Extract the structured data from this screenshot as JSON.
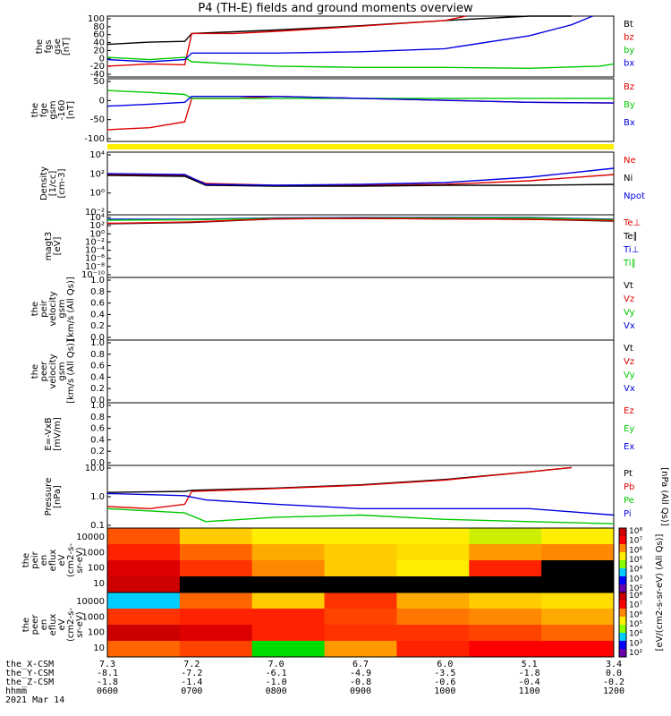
{
  "title": "P4 (TH-E) fields and ground moments overview",
  "colors": {
    "black": "#000000",
    "red": "#e00000",
    "green": "#00c800",
    "blue": "#0000e0",
    "yellow": "#ffee00"
  },
  "chart_data": [
    {
      "type": "line",
      "id": "fgs",
      "ylabel": [
        "the",
        "fgs",
        "gse",
        "[nT]"
      ],
      "yticks": [
        "100",
        "80",
        "60",
        "40",
        "20",
        "0",
        "-20",
        "-40"
      ],
      "ylim": [
        -40,
        100
      ],
      "legend": [
        {
          "name": "Bt",
          "color": "black"
        },
        {
          "name": "bz",
          "color": "red"
        },
        {
          "name": "by",
          "color": "green"
        },
        {
          "name": "bx",
          "color": "blue"
        }
      ],
      "series": [
        {
          "name": "Bt",
          "color": "black",
          "x": [
            "0600",
            "0630",
            "0655",
            "0700",
            "0730",
            "0800",
            "0900",
            "1000",
            "1100",
            "1130"
          ],
          "y": [
            35,
            40,
            42,
            60,
            64,
            68,
            78,
            90,
            100,
            102
          ]
        },
        {
          "name": "bz",
          "color": "red",
          "x": [
            "0600",
            "0630",
            "0655",
            "0700",
            "0730",
            "0800",
            "0900",
            "1000",
            "1015"
          ],
          "y": [
            -15,
            -10,
            -12,
            60,
            60,
            65,
            77,
            90,
            100
          ]
        },
        {
          "name": "by",
          "color": "green",
          "x": [
            "0600",
            "0630",
            "0655",
            "0700",
            "0730",
            "0800",
            "0900",
            "1000",
            "1100",
            "1150",
            "1200"
          ],
          "y": [
            5,
            0,
            5,
            -5,
            -10,
            -15,
            -18,
            -18,
            -20,
            -15,
            -10
          ]
        },
        {
          "name": "bx",
          "color": "blue",
          "x": [
            "0600",
            "0630",
            "0655",
            "0700",
            "0730",
            "0800",
            "0900",
            "1000",
            "1100",
            "1130",
            "1145"
          ],
          "y": [
            0,
            -5,
            0,
            15,
            15,
            15,
            18,
            25,
            55,
            80,
            100
          ]
        }
      ]
    },
    {
      "type": "line",
      "id": "fge",
      "ylabel": [
        "the",
        "fge",
        "gsm",
        "-160",
        "[nT]"
      ],
      "yticks": [
        "50",
        "0",
        "-50",
        "-100"
      ],
      "ylim": [
        -110,
        50
      ],
      "legend": [
        {
          "name": "Bz",
          "color": "red"
        },
        {
          "name": "By",
          "color": "green"
        },
        {
          "name": "Bx",
          "color": "blue"
        }
      ],
      "series": [
        {
          "name": "Bz",
          "color": "red",
          "x": [
            "0600",
            "0630",
            "0655",
            "0700",
            "0730",
            "0800",
            "0900",
            "1000",
            "1100",
            "1200"
          ],
          "y": [
            -80,
            -75,
            -60,
            0,
            0,
            5,
            0,
            -5,
            -10,
            -12
          ]
        },
        {
          "name": "By",
          "color": "green",
          "x": [
            "0600",
            "0630",
            "0655",
            "0700",
            "0730",
            "0800",
            "0900",
            "1000",
            "1100",
            "1200"
          ],
          "y": [
            20,
            15,
            10,
            0,
            0,
            0,
            0,
            0,
            0,
            0
          ]
        },
        {
          "name": "Bx",
          "color": "blue",
          "x": [
            "0600",
            "0630",
            "0655",
            "0700",
            "0730",
            "0800",
            "0900",
            "1000",
            "1100",
            "1200"
          ],
          "y": [
            -20,
            -15,
            -10,
            5,
            5,
            5,
            0,
            -5,
            -10,
            -12
          ]
        }
      ]
    },
    {
      "type": "line",
      "id": "density",
      "ylabel": [
        "Density",
        "[1/cc]",
        "[cm-3]"
      ],
      "yticks": [
        "10⁴",
        "10²",
        "10⁰",
        "10⁻²"
      ],
      "ylim": [
        -3,
        4
      ],
      "yscale": "log",
      "legend": [
        {
          "name": "Ne",
          "color": "red"
        },
        {
          "name": "Ni",
          "color": "black"
        },
        {
          "name": "Npot",
          "color": "blue"
        }
      ],
      "series": [
        {
          "name": "Ne",
          "color": "red",
          "x": [
            "0600",
            "0655",
            "0710",
            "0800",
            "0900",
            "1000",
            "1100",
            "1200"
          ],
          "y": [
            1.5,
            1.4,
            0.5,
            0.3,
            0.3,
            0.4,
            0.8,
            1.5
          ]
        },
        {
          "name": "Ni",
          "color": "black",
          "x": [
            "0600",
            "0655",
            "0710",
            "0800",
            "0900",
            "1000",
            "1100",
            "1200"
          ],
          "y": [
            1.4,
            1.3,
            0.3,
            0.2,
            0.2,
            0.3,
            0.3,
            0.4
          ]
        },
        {
          "name": "Npot",
          "color": "blue",
          "x": [
            "0600",
            "0655",
            "0710",
            "0800",
            "0900",
            "1000",
            "1100",
            "1200"
          ],
          "y": [
            1.6,
            1.5,
            0.4,
            0.3,
            0.4,
            0.6,
            1.2,
            2.2
          ]
        }
      ]
    },
    {
      "type": "line",
      "id": "temp",
      "ylabel": [
        "magt3",
        "[eV]"
      ],
      "yticks": [
        "10⁴",
        "10²",
        "10⁰",
        "10⁻²",
        "10⁻⁴",
        "10⁻⁶",
        "10⁻⁸",
        "10⁻¹⁰"
      ],
      "ylim": [
        -10,
        4
      ],
      "yscale": "log",
      "legend": [
        {
          "name": "Te⊥",
          "color": "red"
        },
        {
          "name": "Te∥",
          "color": "black"
        },
        {
          "name": "Ti⊥",
          "color": "blue"
        },
        {
          "name": "Ti∥",
          "color": "green"
        }
      ],
      "series": [
        {
          "name": "Ti⊥",
          "color": "blue",
          "x": [
            "0600",
            "0700",
            "0800",
            "0900",
            "1000",
            "1100",
            "1200"
          ],
          "y": [
            3.0,
            3.0,
            3.3,
            3.4,
            3.4,
            3.4,
            3.0
          ]
        },
        {
          "name": "Ti∥",
          "color": "green",
          "x": [
            "0600",
            "0700",
            "0800",
            "0900",
            "1000",
            "1100",
            "1200"
          ],
          "y": [
            2.8,
            2.9,
            3.2,
            3.3,
            3.3,
            3.3,
            2.9
          ]
        },
        {
          "name": "Te∥",
          "color": "black",
          "x": [
            "0600",
            "0700",
            "0800",
            "0900",
            "1000",
            "1100",
            "1200"
          ],
          "y": [
            2.0,
            2.3,
            3.1,
            3.2,
            3.1,
            3.0,
            2.6
          ]
        },
        {
          "name": "Te⊥",
          "color": "red",
          "x": [
            "0600",
            "0700",
            "0800",
            "0900",
            "1000",
            "1100",
            "1200"
          ],
          "y": [
            2.1,
            2.4,
            3.1,
            3.2,
            3.1,
            3.0,
            2.7
          ]
        }
      ]
    },
    {
      "type": "line",
      "id": "peir_vel",
      "ylabel": [
        "the",
        "peir",
        "velocity",
        "gsm",
        "[km/s (All Qs)]"
      ],
      "yticks": [
        "1.0",
        "0.8",
        "0.6",
        "0.4",
        "0.2",
        "0.0"
      ],
      "ylim": [
        0,
        1
      ],
      "legend": [
        {
          "name": "Vt",
          "color": "black"
        },
        {
          "name": "Vz",
          "color": "red"
        },
        {
          "name": "Vy",
          "color": "green"
        },
        {
          "name": "Vx",
          "color": "blue"
        }
      ],
      "series": []
    },
    {
      "type": "line",
      "id": "peer_vel",
      "ylabel": [
        "the",
        "peer",
        "velocity",
        "gsm",
        "[km/s (All Qs)]"
      ],
      "yticks": [
        "1.0",
        "0.8",
        "0.6",
        "0.4",
        "0.2",
        "0.0"
      ],
      "ylim": [
        0,
        1
      ],
      "legend": [
        {
          "name": "Vt",
          "color": "black"
        },
        {
          "name": "Vz",
          "color": "red"
        },
        {
          "name": "Vy",
          "color": "green"
        },
        {
          "name": "Vx",
          "color": "blue"
        }
      ],
      "series": []
    },
    {
      "type": "line",
      "id": "efield",
      "ylabel": [
        "E=-VxB",
        "[mV/m]"
      ],
      "yticks": [
        "1.0",
        "0.8",
        "0.6",
        "0.4",
        "0.2",
        "0.0"
      ],
      "ylim": [
        0,
        1
      ],
      "legend": [
        {
          "name": "Ez",
          "color": "red"
        },
        {
          "name": "Ey",
          "color": "green"
        },
        {
          "name": "Ex",
          "color": "blue"
        }
      ],
      "series": []
    },
    {
      "type": "line",
      "id": "pressure",
      "ylabel": [
        "Pressure",
        "[nPa]"
      ],
      "yticks": [
        "10.0",
        "1.0",
        "0.1"
      ],
      "ylim": [
        -1.5,
        1.4
      ],
      "yscale": "log",
      "legend": [
        {
          "name": "Pt",
          "color": "black"
        },
        {
          "name": "Pb",
          "color": "red"
        },
        {
          "name": "Pe",
          "color": "green"
        },
        {
          "name": "Pi",
          "color": "blue"
        }
      ],
      "side_label": "[nPa (All Qs)]",
      "series": [
        {
          "name": "Pt",
          "color": "black",
          "x": [
            "0600",
            "0655",
            "0700",
            "0800",
            "0900",
            "1000",
            "1100",
            "1130"
          ],
          "y": [
            0.15,
            0.2,
            0.25,
            0.35,
            0.5,
            0.75,
            1.1,
            1.3
          ]
        },
        {
          "name": "Pb",
          "color": "red",
          "x": [
            "0600",
            "0630",
            "0655",
            "0700",
            "0800",
            "0900",
            "1000",
            "1100",
            "1130"
          ],
          "y": [
            -0.5,
            -0.6,
            -0.4,
            0.2,
            0.33,
            0.48,
            0.72,
            1.1,
            1.3
          ]
        },
        {
          "name": "Pe",
          "color": "green",
          "x": [
            "0600",
            "0655",
            "0710",
            "0800",
            "0900",
            "1000",
            "1100",
            "1200"
          ],
          "y": [
            -0.6,
            -0.8,
            -1.2,
            -1.0,
            -0.9,
            -1.1,
            -1.2,
            -1.3
          ]
        },
        {
          "name": "Pi",
          "color": "blue",
          "x": [
            "0600",
            "0655",
            "0710",
            "0800",
            "0900",
            "1000",
            "1100",
            "1200"
          ],
          "y": [
            0.1,
            0.0,
            -0.2,
            -0.4,
            -0.6,
            -0.6,
            -0.6,
            -0.9
          ]
        }
      ]
    },
    {
      "type": "heatmap",
      "id": "peir_eflux",
      "ylabel": [
        "the",
        "peir",
        "en",
        "eflux",
        "eV",
        "(cm2-s-",
        "sr-eV)"
      ],
      "yticks": [
        "10000",
        "1000",
        "100",
        "10"
      ],
      "colorbar_ticks": [
        "10⁸",
        "10⁷",
        "10⁶",
        "10⁵",
        "10⁴",
        "10³",
        "10²"
      ],
      "colorbar_label": "[eV/(cm2-s-sr-eV) (All Qs)]"
    },
    {
      "type": "heatmap",
      "id": "peer_eflux",
      "ylabel": [
        "the",
        "peer",
        "en",
        "eflux",
        "eV",
        "(cm2-s-",
        "sr-eV)"
      ],
      "yticks": [
        "10000",
        "1000",
        "100",
        "10"
      ],
      "colorbar_ticks": [
        "10⁸",
        "10⁷",
        "10⁶",
        "10⁵",
        "10⁴",
        "10³",
        "10²"
      ],
      "colorbar_label": "[eV/(cm2-s-sr-eV) (All Qs)]"
    }
  ],
  "xaxis": {
    "rows": [
      {
        "label": "the_X-CSM",
        "values": [
          "7.3",
          "7.2",
          "7.0",
          "6.7",
          "6.0",
          "5.1",
          "3.4"
        ]
      },
      {
        "label": "the_Y-CSM",
        "values": [
          "-8.1",
          "-7.2",
          "-6.1",
          "-4.9",
          "-3.5",
          "-1.8",
          "0.0"
        ]
      },
      {
        "label": "the_Z-CSM",
        "values": [
          "-1.8",
          "-1.4",
          "-1.0",
          "-0.8",
          "-0.6",
          "-0.4",
          "-0.2"
        ]
      },
      {
        "label": "hhmm",
        "values": [
          "0600",
          "0700",
          "0800",
          "0900",
          "1000",
          "1100",
          "1200"
        ]
      }
    ],
    "date": "2021 Mar 14"
  }
}
